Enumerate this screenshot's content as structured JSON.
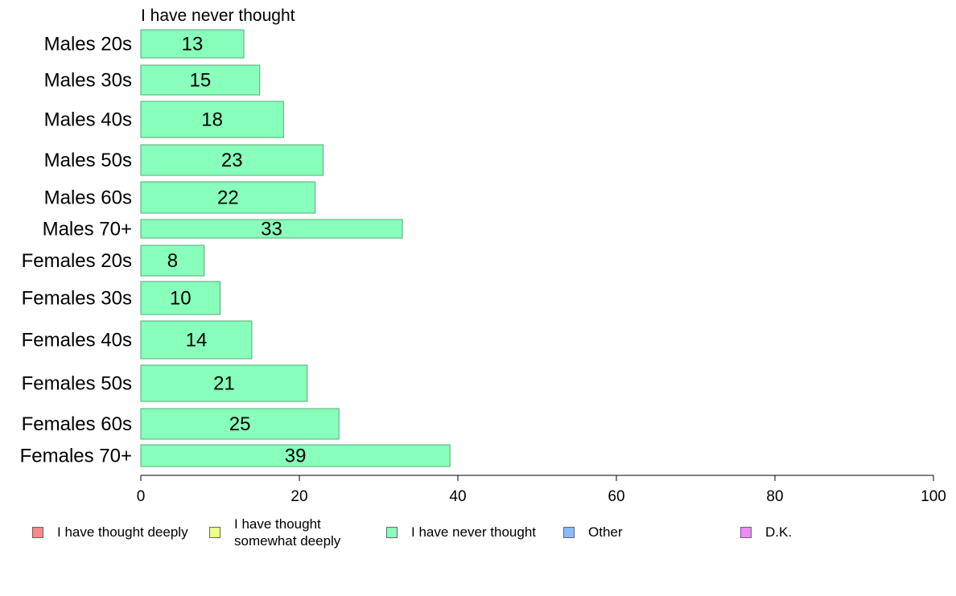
{
  "chart_data": {
    "type": "bar",
    "orientation": "horizontal",
    "panel_title": "I have never thought",
    "categories": [
      "Males 20s",
      "Males 30s",
      "Males 40s",
      "Males 50s",
      "Males 60s",
      "Males 70+",
      "Females 20s",
      "Females 30s",
      "Females 40s",
      "Females 50s",
      "Females 60s",
      "Females 70+"
    ],
    "series": [
      {
        "name": "I have never thought",
        "values": [
          13,
          15,
          18,
          23,
          22,
          33,
          8,
          10,
          14,
          21,
          25,
          39
        ],
        "color": "#88ffbb"
      }
    ],
    "xlim": [
      0,
      100
    ],
    "x_ticks": [
      0,
      20,
      40,
      60,
      80,
      100
    ],
    "grid": false,
    "legend_position": "bottom"
  },
  "legend": [
    {
      "label": "I have thought deeply",
      "color": "#ff8888"
    },
    {
      "label": "I have thought\nsomewhat deeply",
      "color": "#eeff88"
    },
    {
      "label": "I have never thought",
      "color": "#88ffbb"
    },
    {
      "label": "Other",
      "color": "#88bbff"
    },
    {
      "label": "D.K.",
      "color": "#ee88ff"
    }
  ]
}
